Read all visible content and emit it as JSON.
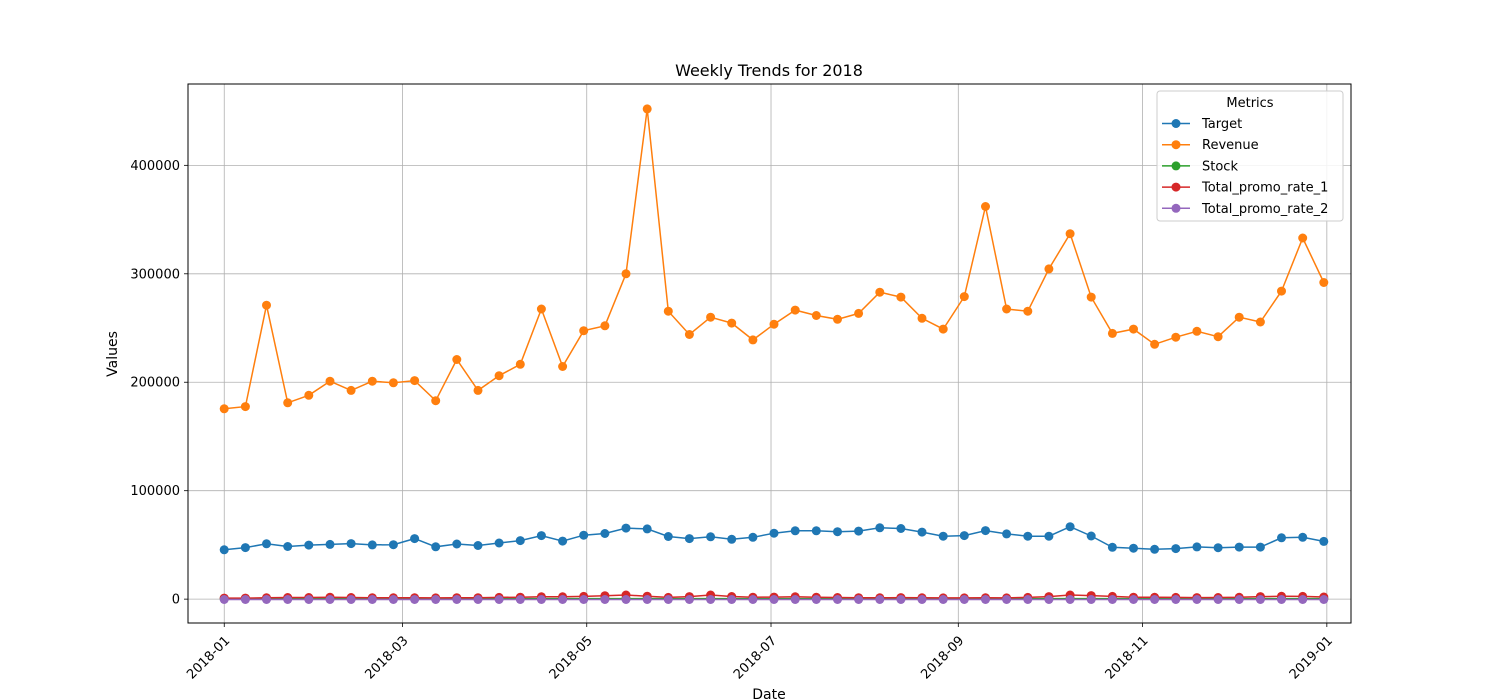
{
  "chart_data": {
    "type": "line",
    "title": "Weekly Trends for 2018",
    "xlabel": "Date",
    "ylabel": "Values",
    "legend_title": "Metrics",
    "legend_position": "top-right",
    "grid": true,
    "xlim": [
      "2017-12-20",
      "2019-01-09"
    ],
    "ylim": [
      -22000,
      475000
    ],
    "xticks": [
      "2018-01",
      "2018-03",
      "2018-05",
      "2018-07",
      "2018-09",
      "2018-11",
      "2019-01"
    ],
    "yticks": [
      0,
      100000,
      200000,
      300000,
      400000
    ],
    "x": [
      "2018-01-01",
      "2018-01-08",
      "2018-01-15",
      "2018-01-22",
      "2018-01-29",
      "2018-02-05",
      "2018-02-12",
      "2018-02-19",
      "2018-02-26",
      "2018-03-05",
      "2018-03-12",
      "2018-03-19",
      "2018-03-26",
      "2018-04-02",
      "2018-04-09",
      "2018-04-16",
      "2018-04-23",
      "2018-04-30",
      "2018-05-07",
      "2018-05-14",
      "2018-05-21",
      "2018-05-28",
      "2018-06-04",
      "2018-06-11",
      "2018-06-18",
      "2018-06-25",
      "2018-07-02",
      "2018-07-09",
      "2018-07-16",
      "2018-07-23",
      "2018-07-30",
      "2018-08-06",
      "2018-08-13",
      "2018-08-20",
      "2018-08-27",
      "2018-09-03",
      "2018-09-10",
      "2018-09-17",
      "2018-09-24",
      "2018-10-01",
      "2018-10-08",
      "2018-10-15",
      "2018-10-22",
      "2018-10-29",
      "2018-11-05",
      "2018-11-12",
      "2018-11-19",
      "2018-11-26",
      "2018-12-03",
      "2018-12-10",
      "2018-12-17",
      "2018-12-24",
      "2018-12-31"
    ],
    "series": [
      {
        "name": "Target",
        "color": "#1f77b4",
        "values": [
          45500,
          47500,
          51000,
          48500,
          49800,
          50500,
          51200,
          50000,
          50200,
          55800,
          48300,
          50800,
          49500,
          51800,
          54000,
          58600,
          53500,
          59000,
          60500,
          65500,
          64800,
          57800,
          55800,
          57500,
          55200,
          57000,
          60800,
          63000,
          63000,
          62200,
          62700,
          65800,
          65100,
          61800,
          58000,
          58600,
          63200,
          60200,
          58000,
          58000,
          66800,
          58200,
          47800,
          47000,
          46000,
          46600,
          48200,
          47400,
          48000,
          48000,
          56600,
          57000,
          53200
        ]
      },
      {
        "name": "Revenue",
        "color": "#ff7f0e",
        "values": [
          175500,
          177500,
          271000,
          181000,
          188000,
          201000,
          192500,
          201000,
          199500,
          201500,
          183000,
          221000,
          192500,
          206000,
          216500,
          267500,
          214500,
          247500,
          252000,
          300000,
          452000,
          265500,
          244000,
          260000,
          254500,
          239000,
          253500,
          266500,
          261500,
          258000,
          263500,
          283000,
          278500,
          259000,
          249000,
          279000,
          362000,
          267500,
          265500,
          304500,
          337000,
          278500,
          245000,
          249000,
          235000,
          241500,
          247000,
          242000,
          260000,
          255500,
          284000,
          333000,
          292000
        ]
      },
      {
        "name": "Stock",
        "color": "#2ca02c",
        "values": [
          500,
          500,
          500,
          500,
          500,
          500,
          500,
          500,
          500,
          500,
          500,
          500,
          500,
          500,
          500,
          500,
          500,
          500,
          500,
          500,
          500,
          500,
          500,
          500,
          500,
          500,
          500,
          500,
          500,
          500,
          500,
          500,
          500,
          500,
          500,
          500,
          500,
          500,
          500,
          500,
          500,
          500,
          500,
          500,
          500,
          500,
          500,
          500,
          500,
          500,
          500,
          500,
          500
        ]
      },
      {
        "name": "Total_promo_rate_1",
        "color": "#d62728",
        "values": [
          1000,
          1000,
          1200,
          1500,
          1500,
          1800,
          1500,
          1300,
          1200,
          1200,
          1100,
          1300,
          1300,
          1600,
          1800,
          2200,
          2200,
          2500,
          3200,
          3800,
          2700,
          1600,
          2300,
          3800,
          2400,
          1800,
          1900,
          2200,
          1800,
          1500,
          1300,
          1200,
          1400,
          1200,
          1100,
          1100,
          1200,
          1100,
          1600,
          2300,
          3800,
          3300,
          2500,
          1800,
          1700,
          1600,
          1400,
          1500,
          1700,
          2300,
          2600,
          2500,
          2000
        ]
      },
      {
        "name": "Total_promo_rate_2",
        "color": "#9467bd",
        "values": [
          -300,
          -300,
          -300,
          -300,
          -300,
          -300,
          -300,
          -300,
          -300,
          -300,
          -300,
          -300,
          -300,
          -300,
          -300,
          -300,
          -300,
          -300,
          -300,
          -300,
          -300,
          -300,
          -300,
          -300,
          -300,
          -300,
          -300,
          -300,
          -300,
          -300,
          -300,
          -300,
          -300,
          -300,
          -300,
          -300,
          -300,
          -300,
          -300,
          -300,
          -300,
          -300,
          -300,
          -300,
          -300,
          -300,
          -300,
          -300,
          -300,
          -300,
          -300,
          -300,
          -300
        ]
      }
    ]
  }
}
